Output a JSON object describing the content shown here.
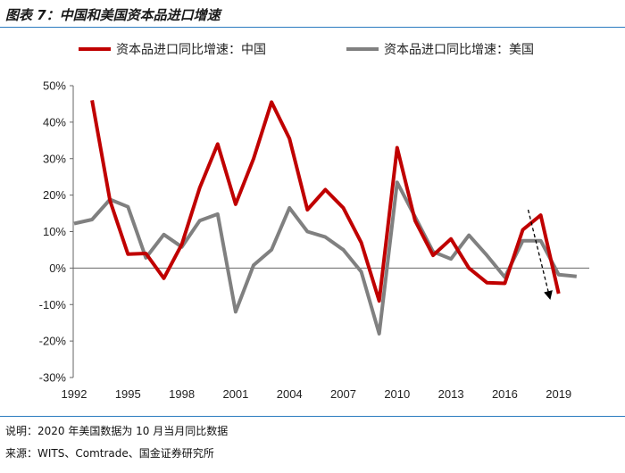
{
  "figure": {
    "title": "图表 7：中国和美国资本品进口增速",
    "note": "说明：2020 年美国数据为 10 月当月同比数据",
    "source": "来源：WITS、Comtrade、国金证券研究所"
  },
  "chart_data": {
    "type": "line",
    "title": "中国和美国资本品进口增速",
    "xlabel": "",
    "ylabel": "",
    "ylim": [
      -30,
      50
    ],
    "yticks": [
      50,
      40,
      30,
      20,
      10,
      0,
      -10,
      -20,
      -30
    ],
    "ytick_labels": [
      "50%",
      "40%",
      "30%",
      "20%",
      "10%",
      "0%",
      "-10%",
      "-20%",
      "-30%"
    ],
    "xlim": [
      1992,
      2020
    ],
    "xtick_labels": [
      "1992",
      "1995",
      "1998",
      "2001",
      "2004",
      "2007",
      "2010",
      "2013",
      "2016",
      "2019"
    ],
    "grid": false,
    "legend_position": "top",
    "series": [
      {
        "name": "资本品进口同比增速：中国",
        "color": "#c00000",
        "x": [
          1993,
          1994,
          1995,
          1996,
          1997,
          1998,
          1999,
          2000,
          2001,
          2002,
          2003,
          2004,
          2005,
          2006,
          2007,
          2008,
          2009,
          2010,
          2011,
          2012,
          2013,
          2014,
          2015,
          2016,
          2017,
          2018,
          2019
        ],
        "values": [
          46,
          18.5,
          3.8,
          4,
          -2.8,
          6.5,
          22,
          34,
          17.5,
          30,
          45.5,
          35.5,
          16,
          21.5,
          16.5,
          7,
          -9,
          33,
          13,
          3.5,
          8,
          0,
          -4,
          -4.2,
          10.5,
          14.5,
          -7
        ]
      },
      {
        "name": "资本品进口同比增速：美国",
        "color": "#808080",
        "x": [
          1992,
          1993,
          1994,
          1995,
          1996,
          1997,
          1998,
          1999,
          2000,
          2001,
          2002,
          2003,
          2004,
          2005,
          2006,
          2007,
          2008,
          2009,
          2010,
          2011,
          2012,
          2013,
          2014,
          2015,
          2016,
          2017,
          2018,
          2019,
          2020
        ],
        "values": [
          12.2,
          13.3,
          18.8,
          16.8,
          2.8,
          9.2,
          5.8,
          13,
          14.8,
          -12,
          0.8,
          5,
          16.5,
          10,
          8.5,
          5,
          -1,
          -18,
          23.5,
          14,
          4.5,
          2.5,
          9,
          3.5,
          -2.5,
          7.5,
          7.5,
          -1.8,
          -2.3
        ]
      }
    ],
    "annotations": [
      {
        "type": "dashed-arrow",
        "from": [
          2017.3,
          16
        ],
        "to": [
          2018.5,
          -8
        ]
      }
    ]
  }
}
